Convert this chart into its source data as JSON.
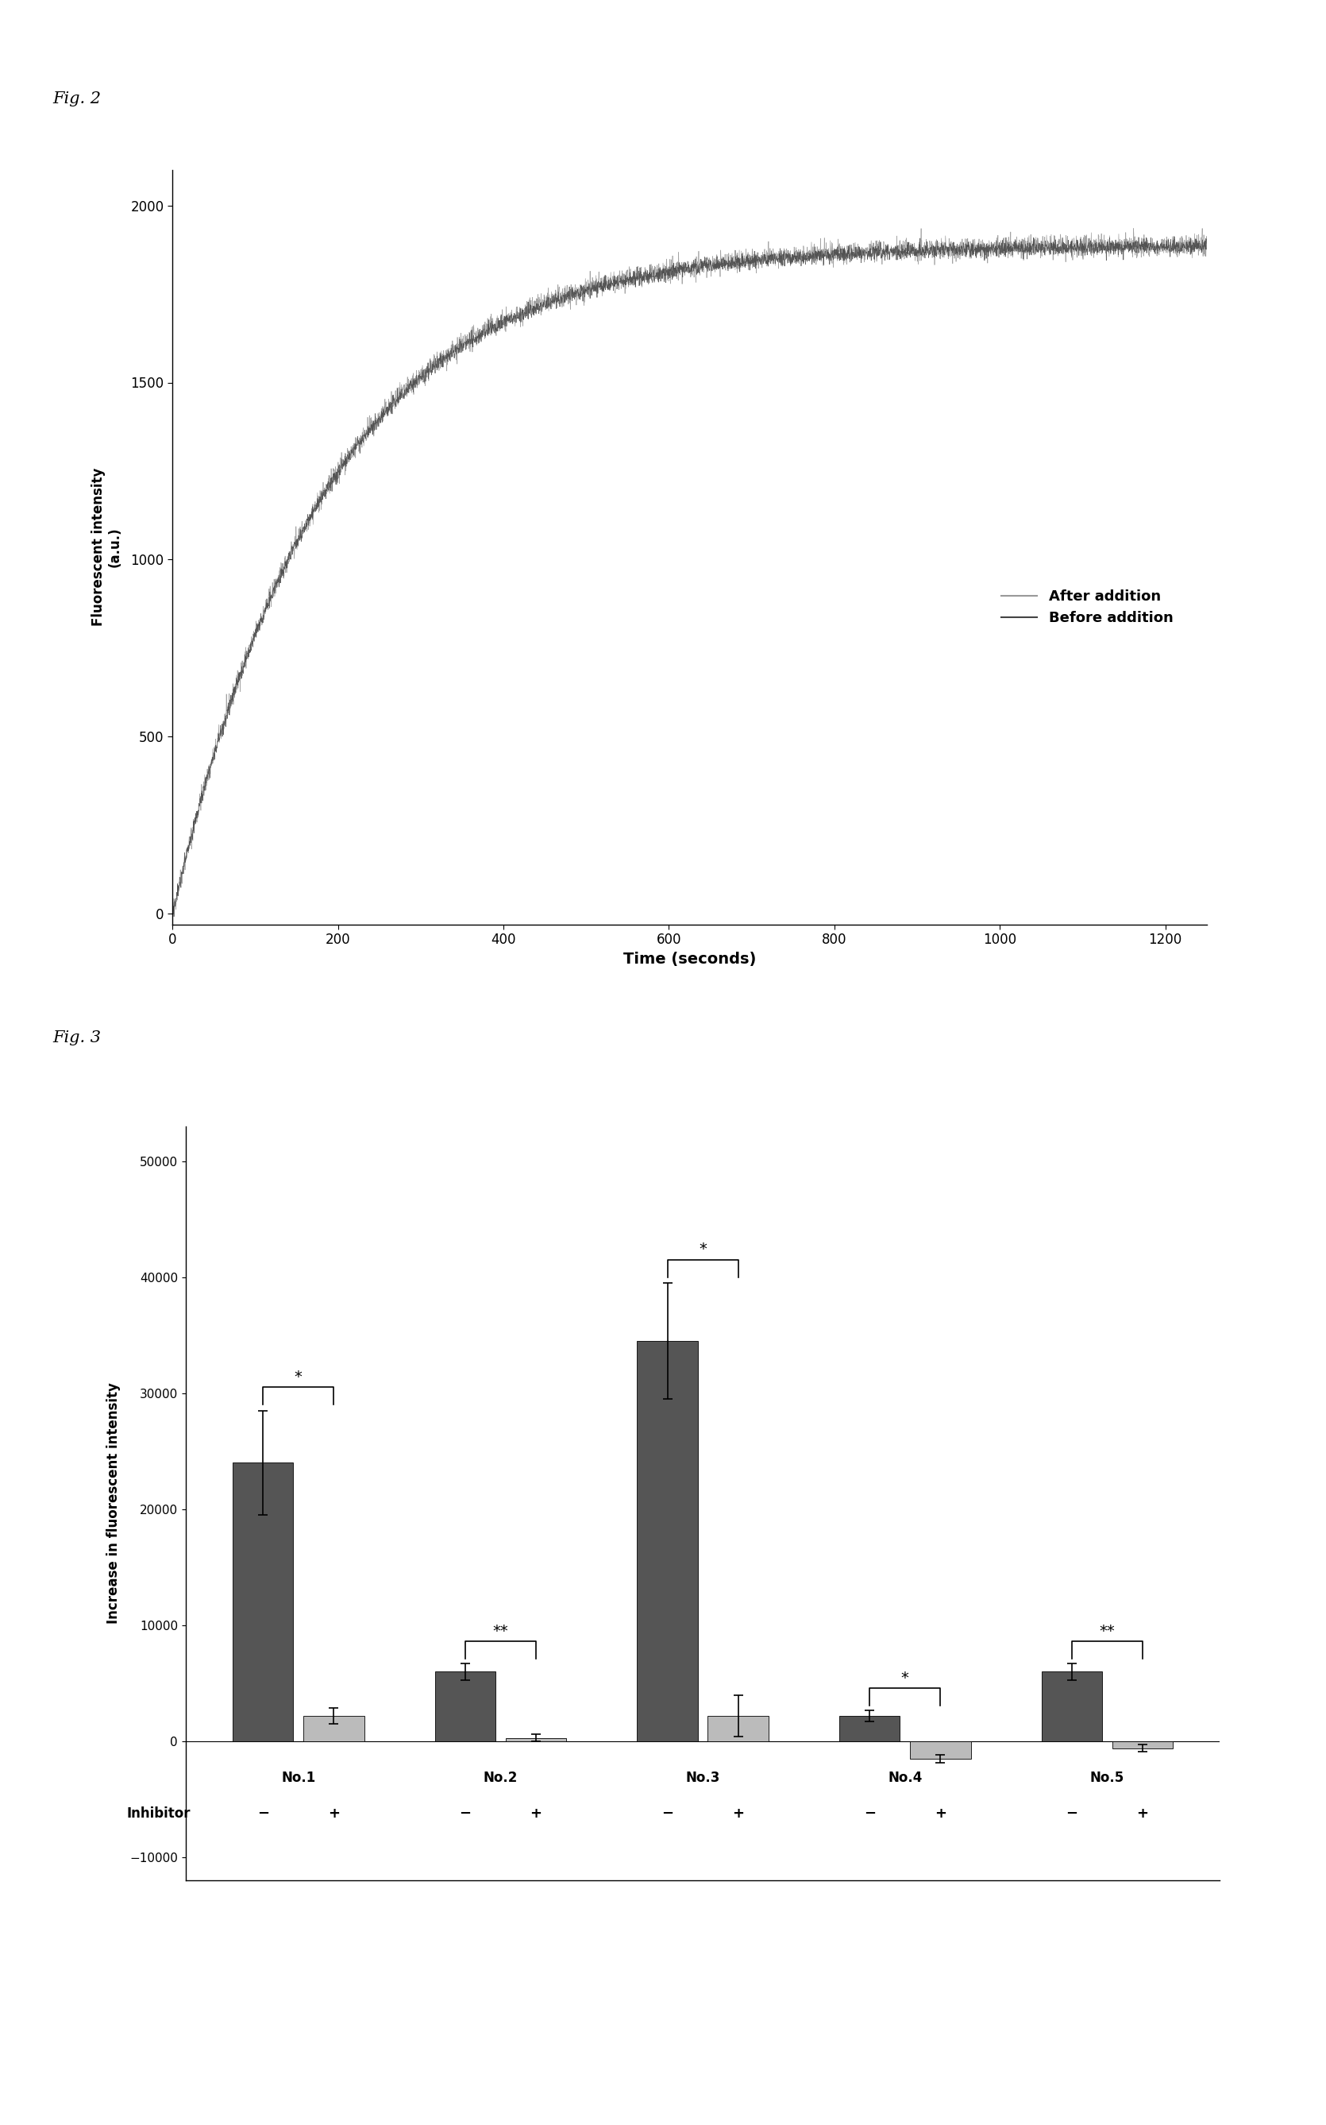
{
  "fig2_title": "Fig. 2",
  "fig3_title": "Fig. 3",
  "fig2_xlabel": "Time (seconds)",
  "fig2_ylabel": "Fluorescent intensity（a.u.）",
  "fig2_ylabel_plain": "Fluorescent intensity　(a.u.)",
  "fig2_xlim": [
    0,
    1250
  ],
  "fig2_ylim": [
    -30,
    2100
  ],
  "fig2_xticks": [
    0,
    200,
    400,
    600,
    800,
    1000,
    1200
  ],
  "fig2_yticks": [
    0,
    500,
    1000,
    1500,
    2000
  ],
  "fig2_legend_after": "After addition",
  "fig2_legend_before": "Before addition",
  "fig3_ylabel": "Increase in fluorescent intensity",
  "fig3_ylim": [
    -12000,
    53000
  ],
  "fig3_yticks": [
    -10000,
    0,
    10000,
    20000,
    30000,
    40000,
    50000
  ],
  "fig3_categories": [
    "No.1",
    "No.2",
    "No.3",
    "No.4",
    "No.5"
  ],
  "fig3_dark_values": [
    24000,
    6000,
    34500,
    2200,
    6000
  ],
  "fig3_light_values": [
    2200,
    300,
    2200,
    -1500,
    -600
  ],
  "fig3_dark_errors": [
    4500,
    700,
    5000,
    500,
    700
  ],
  "fig3_light_errors": [
    700,
    300,
    1800,
    350,
    300
  ],
  "fig3_dark_color": "#555555",
  "fig3_light_color": "#bbbbbb",
  "inhibitor_label": "Inhibitor",
  "background_color": "#ffffff",
  "line_color_after": "#999999",
  "line_color_before": "#444444",
  "tau": 185.0,
  "y_max": 1890,
  "noise_after_std": 15,
  "noise_before_std": 10
}
